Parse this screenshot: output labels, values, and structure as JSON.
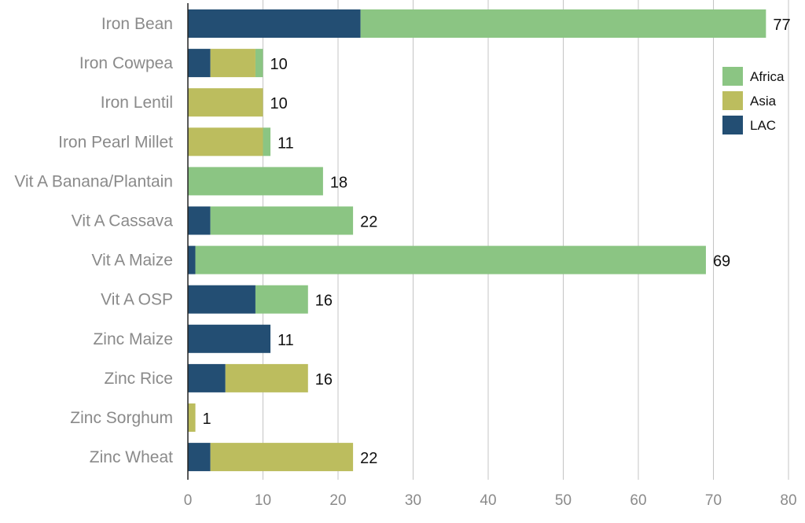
{
  "chart_data": {
    "type": "bar",
    "orientation": "horizontal",
    "stacked": true,
    "categories": [
      "Iron Bean",
      "Iron Cowpea",
      "Iron Lentil",
      "Iron Pearl Millet",
      "Vit A Banana/Plantain",
      "Vit A Cassava",
      "Vit A Maize",
      "Vit A OSP",
      "Zinc Maize",
      "Zinc Rice",
      "Zinc Sorghum",
      "Zinc Wheat"
    ],
    "series": [
      {
        "name": "LAC",
        "color": "#234e73",
        "values": [
          23,
          3,
          0,
          0,
          0,
          3,
          1,
          9,
          11,
          5,
          0,
          3
        ]
      },
      {
        "name": "Asia",
        "color": "#bcbd5e",
        "values": [
          0,
          6,
          10,
          10,
          0,
          0,
          0,
          0,
          0,
          11,
          1,
          19
        ]
      },
      {
        "name": "Africa",
        "color": "#8bc583",
        "values": [
          54,
          1,
          0,
          1,
          18,
          19,
          68,
          7,
          0,
          0,
          0,
          0
        ]
      }
    ],
    "totals": [
      "77",
      "10",
      "10",
      "11",
      "18",
      "22",
      "69",
      "16",
      "11",
      "16",
      "1",
      "22"
    ],
    "xlim": [
      0,
      80
    ],
    "xticks": [
      "0",
      "10",
      "20",
      "30",
      "40",
      "50",
      "60",
      "70",
      "80"
    ],
    "legend": {
      "position": "right",
      "order": [
        "Africa",
        "Asia",
        "LAC"
      ]
    },
    "grid": "vertical",
    "title": "",
    "xlabel": "",
    "ylabel": ""
  }
}
